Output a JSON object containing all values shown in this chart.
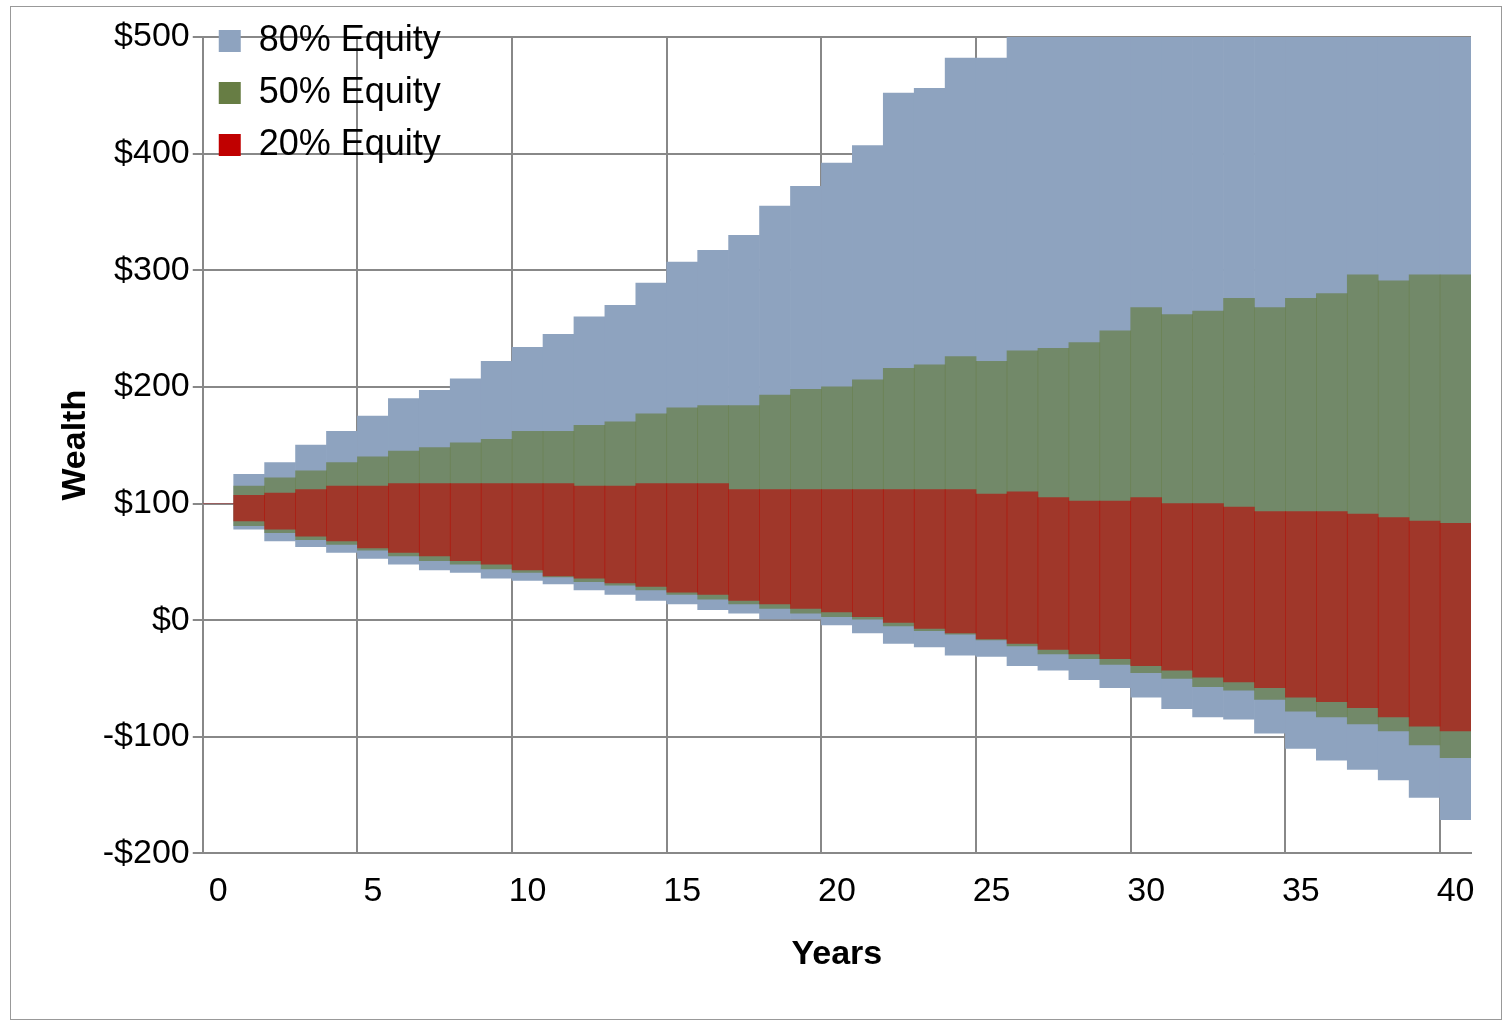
{
  "chart_data": {
    "type": "bar",
    "xlabel": "Years",
    "ylabel": "Wealth",
    "categories": [
      "0",
      null,
      null,
      null,
      null,
      "5",
      null,
      null,
      null,
      null,
      "10",
      null,
      null,
      null,
      null,
      "15",
      null,
      null,
      null,
      null,
      "20",
      null,
      null,
      null,
      null,
      "25",
      null,
      null,
      null,
      null,
      "30",
      null,
      null,
      null,
      null,
      "35",
      null,
      null,
      null,
      null,
      "40"
    ],
    "series": [
      {
        "name": "80% Equity",
        "color": "#8ea3bf",
        "base": [
          null,
          78,
          68,
          63,
          58,
          53,
          48,
          43,
          41,
          36,
          34,
          31,
          26,
          22,
          17,
          14,
          9,
          6,
          1,
          1,
          -4,
          -11,
          -20,
          -23,
          -30,
          -31,
          -39,
          -43,
          -51,
          -58,
          -66,
          -76,
          -83,
          -85,
          -97,
          -110,
          -120,
          -128,
          -137,
          -152,
          -171
        ],
        "values": [
          null,
          47,
          67,
          87,
          104,
          122,
          142,
          154,
          166,
          186,
          200,
          214,
          234,
          248,
          272,
          293,
          308,
          324,
          354,
          371,
          396,
          418,
          472,
          479,
          512,
          513,
          539,
          543,
          551,
          558,
          566,
          576,
          583,
          585,
          597,
          610,
          620,
          628,
          637,
          652,
          671
        ]
      },
      {
        "name": "50% Equity",
        "color": "#677d44",
        "base": [
          null,
          81,
          75,
          69,
          65,
          60,
          55,
          51,
          48,
          44,
          41,
          37,
          33,
          30,
          26,
          22,
          18,
          14,
          10,
          6,
          3,
          0,
          -5,
          -9,
          -12,
          -17,
          -22,
          -29,
          -33,
          -38,
          -45,
          -50,
          -57,
          -60,
          -68,
          -78,
          -83,
          -89,
          -95,
          -107,
          -118
        ],
        "values": [
          null,
          34,
          47,
          59,
          70,
          80,
          90,
          97,
          104,
          111,
          121,
          125,
          134,
          140,
          151,
          160,
          166,
          170,
          183,
          192,
          197,
          206,
          221,
          228,
          238,
          239,
          253,
          262,
          271,
          286,
          313,
          312,
          322,
          336,
          336,
          354,
          363,
          385,
          386,
          403,
          414
        ]
      },
      {
        "name": "20% Equity",
        "color": "#c00000",
        "base": [
          100,
          85,
          78,
          72,
          68,
          62,
          58,
          55,
          51,
          48,
          43,
          38,
          36,
          32,
          29,
          24,
          22,
          17,
          14,
          10,
          7,
          3,
          -2,
          -7,
          -11,
          -16,
          -20,
          -25,
          -29,
          -33,
          -39,
          -43,
          -49,
          -53,
          -58,
          -66,
          -70,
          -75,
          -83,
          -91,
          -95
        ],
        "values": [
          0,
          22,
          31,
          40,
          47,
          53,
          59,
          62,
          66,
          69,
          74,
          79,
          79,
          83,
          88,
          93,
          95,
          95,
          98,
          102,
          105,
          109,
          114,
          119,
          123,
          124,
          130,
          130,
          131,
          135,
          144,
          143,
          149,
          150,
          151,
          159,
          163,
          166,
          171,
          176,
          178
        ]
      }
    ],
    "ylim": [
      -200,
      500
    ],
    "yticks": [
      {
        "value": -200,
        "label": "-$200"
      },
      {
        "value": -100,
        "label": "-$100"
      },
      {
        "value": 0,
        "label": "$0"
      },
      {
        "value": 100,
        "label": "$100"
      },
      {
        "value": 200,
        "label": "$200"
      },
      {
        "value": 300,
        "label": "$300"
      },
      {
        "value": 400,
        "label": "$400"
      },
      {
        "value": 500,
        "label": "$500"
      }
    ],
    "grid": true,
    "legend": "top left"
  }
}
